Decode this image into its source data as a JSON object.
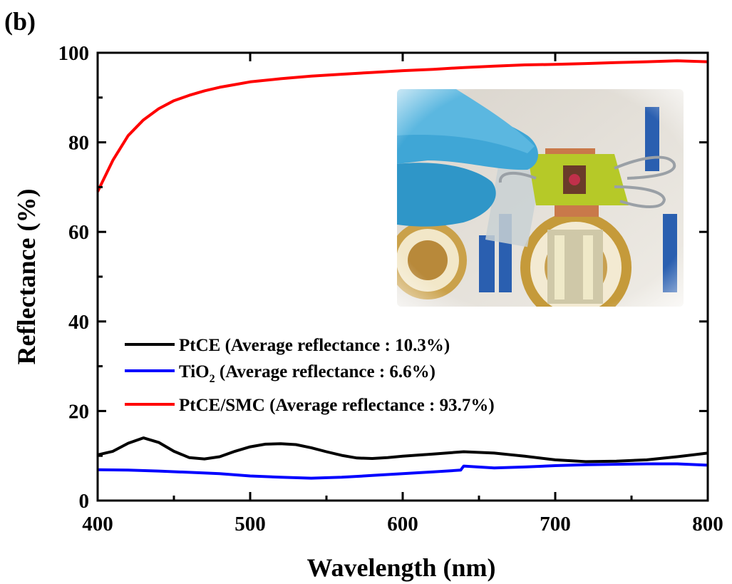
{
  "panel_label": "(b)",
  "inset_photo": {
    "description_icons": [
      "gloved-fingers-icon",
      "binder-clip-icon",
      "ntu-logo-icon",
      "seal-icon"
    ],
    "colors": {
      "glove": "#3fa6d6",
      "clip": "#b6c928",
      "copper": "#c9794a",
      "seal": "#c59a3a",
      "ntu_text": "#2a5fb0"
    }
  },
  "chart_data": {
    "type": "line",
    "xlabel": "Wavelength (nm)",
    "ylabel": "Reflectance (%)",
    "xlim": [
      400,
      800
    ],
    "ylim": [
      0,
      100
    ],
    "xticks": [
      400,
      500,
      600,
      700,
      800
    ],
    "yticks": [
      0,
      20,
      40,
      60,
      80,
      100
    ],
    "grid": false,
    "legend_position": "center-left",
    "series": [
      {
        "name": "PtCE (Average reflectance : 10.3%)",
        "legend_main": "PtCE (Average reflectance : 10.3%)",
        "color": "#000000",
        "x": [
          400,
          410,
          420,
          430,
          440,
          450,
          460,
          470,
          480,
          490,
          500,
          510,
          520,
          530,
          540,
          550,
          560,
          570,
          580,
          590,
          600,
          620,
          640,
          660,
          680,
          700,
          720,
          740,
          760,
          780,
          800
        ],
        "y": [
          10.2,
          11.0,
          12.8,
          14.0,
          13.0,
          11.0,
          9.6,
          9.3,
          9.8,
          11.0,
          12.0,
          12.6,
          12.7,
          12.5,
          11.8,
          10.9,
          10.1,
          9.5,
          9.4,
          9.6,
          9.9,
          10.4,
          10.9,
          10.6,
          9.9,
          9.1,
          8.7,
          8.8,
          9.1,
          9.8,
          10.6
        ]
      },
      {
        "name": "TiO2 (Average reflectance : 6.6%)",
        "legend_main": "TiO",
        "legend_sub": "2",
        "legend_rest": " (Average reflectance : 6.6%)",
        "color": "#0000ff",
        "x": [
          400,
          420,
          440,
          460,
          480,
          500,
          520,
          540,
          560,
          580,
          600,
          620,
          638,
          640,
          660,
          680,
          700,
          720,
          740,
          760,
          780,
          800
        ],
        "y": [
          6.9,
          6.8,
          6.6,
          6.3,
          6.0,
          5.5,
          5.2,
          5.0,
          5.2,
          5.6,
          6.0,
          6.4,
          6.8,
          7.7,
          7.3,
          7.5,
          7.8,
          8.0,
          8.1,
          8.2,
          8.2,
          7.9
        ]
      },
      {
        "name": "PtCE/SMC (Average reflectance : 93.7%)",
        "legend_main": "PtCE/SMC (Average reflectance : 93.7%)",
        "color": "#ff0000",
        "x": [
          400,
          410,
          420,
          430,
          440,
          450,
          460,
          470,
          480,
          490,
          500,
          520,
          540,
          560,
          580,
          600,
          620,
          640,
          660,
          680,
          700,
          720,
          740,
          760,
          780,
          800
        ],
        "y": [
          69.0,
          76.0,
          81.5,
          85.0,
          87.5,
          89.3,
          90.5,
          91.5,
          92.3,
          92.9,
          93.5,
          94.2,
          94.8,
          95.2,
          95.6,
          96.0,
          96.3,
          96.7,
          97.0,
          97.3,
          97.4,
          97.6,
          97.8,
          98.0,
          98.2,
          98.0
        ]
      }
    ]
  }
}
